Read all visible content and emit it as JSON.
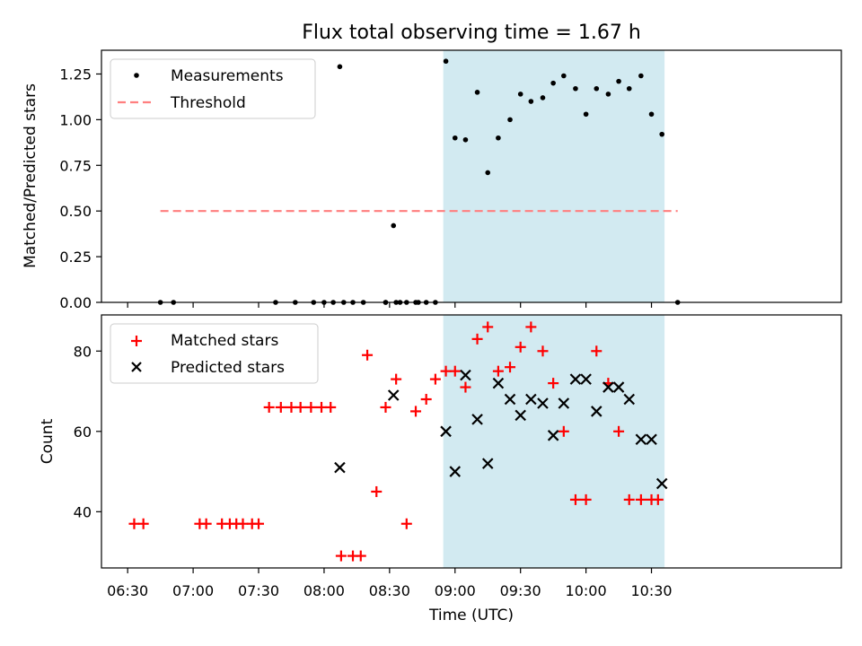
{
  "colors": {
    "shade": "#add8e6",
    "matched": "#ff0000",
    "predicted": "#000000",
    "measurement": "#000000",
    "threshold": "#ff7f7f"
  },
  "chart_data": [
    {
      "type": "scatter",
      "title": "Flux total observing time = 1.67 h",
      "ylabel": "Matched/Predicted stars",
      "ylim": [
        0.0,
        1.38
      ],
      "yticks": [
        "0.00",
        "0.25",
        "0.50",
        "0.75",
        "1.00",
        "1.25"
      ],
      "xlim_min": [
        6.3,
        11.95
      ],
      "shaded_span_hours": [
        8.91,
        10.6
      ],
      "threshold": {
        "name": "Threshold",
        "y": 0.5,
        "x_hours": [
          6.75,
          10.7
        ]
      },
      "series": [
        {
          "name": "Measurements",
          "x_hours": [
            6.75,
            6.85,
            7.63,
            7.78,
            7.92,
            8.0,
            8.07,
            8.15,
            8.22,
            8.3,
            8.47,
            8.55,
            8.63,
            8.72,
            8.78,
            8.85,
            8.58,
            8.47,
            8.12,
            8.53,
            8.93,
            8.7,
            9.0,
            9.08,
            9.17,
            9.25,
            9.33,
            9.42,
            9.5,
            9.58,
            9.67,
            9.75,
            9.83,
            9.92,
            10.0,
            10.08,
            10.17,
            10.25,
            10.33,
            10.42,
            10.5,
            10.58,
            10.7
          ],
          "y": [
            0,
            0,
            0,
            0,
            0,
            0,
            0,
            0,
            0,
            0,
            0,
            0,
            0,
            0,
            0,
            0,
            0,
            0,
            1.29,
            0.42,
            1.32,
            0,
            0.9,
            0.89,
            1.15,
            0.71,
            0.9,
            1.0,
            1.14,
            1.1,
            1.12,
            1.2,
            1.24,
            1.17,
            1.03,
            1.17,
            1.14,
            1.21,
            1.17,
            1.24,
            1.03,
            0.92,
            0
          ]
        }
      ]
    },
    {
      "type": "scatter",
      "xlabel": "Time (UTC)",
      "ylabel": "Count",
      "ylim": [
        26.0,
        89.0
      ],
      "yticks": [
        "40",
        "60",
        "80"
      ],
      "xticks": [
        "06:30",
        "07:00",
        "07:30",
        "08:00",
        "08:30",
        "09:00",
        "09:30",
        "10:00",
        "10:30"
      ],
      "series": [
        {
          "name": "Matched stars",
          "marker": "plus",
          "x_hours": [
            6.55,
            6.62,
            7.05,
            7.1,
            7.22,
            7.28,
            7.33,
            7.38,
            7.45,
            7.5,
            7.58,
            7.67,
            7.75,
            7.82,
            7.9,
            7.98,
            8.05,
            8.13,
            8.22,
            8.28,
            8.33,
            8.4,
            8.47,
            8.55,
            8.63,
            8.7,
            8.78,
            8.85,
            8.93,
            9.0,
            9.08,
            9.17,
            9.25,
            9.33,
            9.42,
            9.5,
            9.58,
            9.67,
            9.75,
            9.83,
            9.92,
            10.0,
            10.08,
            10.17,
            10.25,
            10.33,
            10.42,
            10.5,
            10.55
          ],
          "y": [
            37,
            37,
            37,
            37,
            37,
            37,
            37,
            37,
            37,
            37,
            66,
            66,
            66,
            66,
            66,
            66,
            66,
            29,
            29,
            29,
            79,
            45,
            66,
            73,
            37,
            65,
            68,
            73,
            75,
            75,
            71,
            83,
            86,
            75,
            76,
            81,
            86,
            80,
            72,
            60,
            43,
            43,
            80,
            72,
            60,
            43,
            43,
            43,
            43
          ]
        },
        {
          "name": "Predicted stars",
          "marker": "x",
          "x_hours": [
            8.12,
            8.53,
            8.93,
            9.0,
            9.08,
            9.17,
            9.25,
            9.33,
            9.42,
            9.5,
            9.58,
            9.67,
            9.75,
            9.83,
            9.92,
            10.0,
            10.08,
            10.17,
            10.25,
            10.33,
            10.42,
            10.5,
            10.58
          ],
          "y": [
            51,
            69,
            60,
            50,
            74,
            63,
            52,
            72,
            68,
            64,
            68,
            67,
            59,
            67,
            73,
            73,
            65,
            71,
            71,
            68,
            58,
            58,
            47
          ]
        }
      ]
    }
  ],
  "legend_top": [
    "Measurements",
    "Threshold"
  ],
  "legend_bottom": [
    "Matched stars",
    "Predicted stars"
  ]
}
